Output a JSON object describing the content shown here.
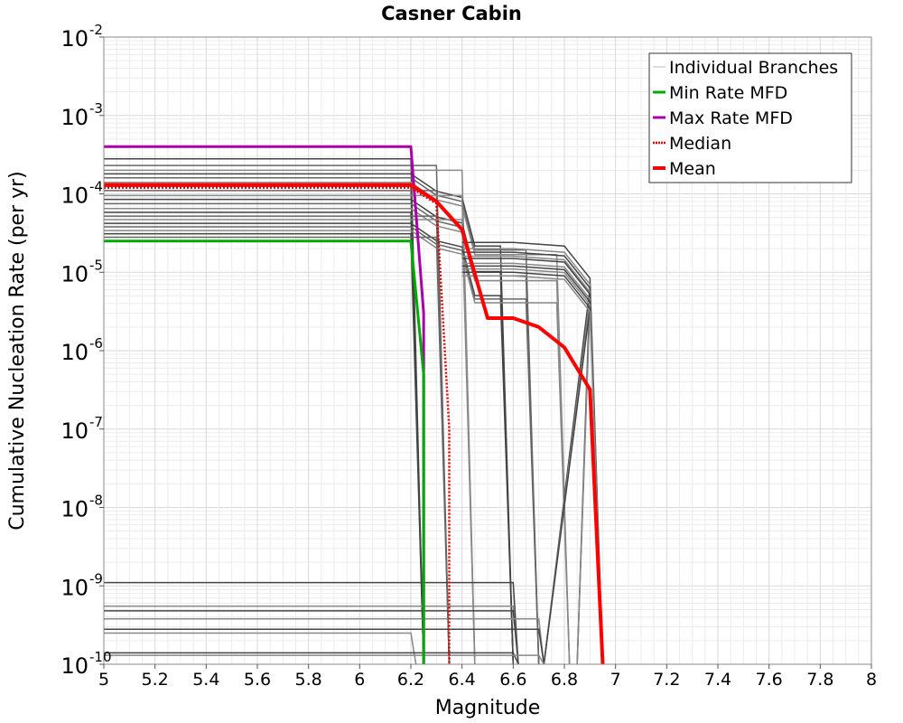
{
  "chart_data": {
    "type": "line",
    "title": "Casner Cabin",
    "xlabel": "Magnitude",
    "ylabel": "Cumulative Nucleation Rate (per yr)",
    "xlim": [
      5,
      8
    ],
    "ylim": [
      1e-10,
      0.01
    ],
    "yscale": "log",
    "grid": true,
    "legend_position": "top-right",
    "x_ticks": [
      5,
      5.2,
      5.4,
      5.6,
      5.8,
      6,
      6.2,
      6.4,
      6.6,
      6.8,
      7,
      7.2,
      7.4,
      7.6,
      7.8,
      8
    ],
    "x_tick_labels": [
      "5",
      "5.2",
      "5.4",
      "5.6",
      "5.8",
      "6",
      "6.2",
      "6.4",
      "6.6",
      "6.8",
      "7",
      "7.2",
      "7.4",
      "7.6",
      "7.8",
      "8"
    ],
    "y_ticks": [
      {
        "value": 0.01,
        "base": "10",
        "exp": "-2"
      },
      {
        "value": 0.001,
        "base": "10",
        "exp": "-3"
      },
      {
        "value": 0.0001,
        "base": "10",
        "exp": "-4"
      },
      {
        "value": 1e-05,
        "base": "10",
        "exp": "-5"
      },
      {
        "value": 1e-06,
        "base": "10",
        "exp": "-6"
      },
      {
        "value": 1e-07,
        "base": "10",
        "exp": "-7"
      },
      {
        "value": 1e-08,
        "base": "10",
        "exp": "-8"
      },
      {
        "value": 1e-09,
        "base": "10",
        "exp": "-9"
      },
      {
        "value": 1e-10,
        "base": "10",
        "exp": "-10"
      }
    ],
    "legend": [
      {
        "label": "Individual Branches",
        "color": "#bbbbbb",
        "style": "thin"
      },
      {
        "label": "Min Rate MFD",
        "color": "#00aa00",
        "style": "solid"
      },
      {
        "label": "Max Rate MFD",
        "color": "#aa00aa",
        "style": "solid"
      },
      {
        "label": "Median",
        "color": "#dd0000",
        "style": "dotted"
      },
      {
        "label": "Mean",
        "color": "#ff0000",
        "style": "thick"
      }
    ],
    "series": [
      {
        "name": "Max Rate MFD",
        "color": "#aa00aa",
        "width": 3,
        "dash": "",
        "x": [
          5,
          6.2,
          6.25,
          6.25
        ],
        "y": [
          0.0004,
          0.0004,
          3e-06,
          1e-10
        ]
      },
      {
        "name": "Min Rate MFD",
        "color": "#00aa00",
        "width": 3,
        "dash": "",
        "x": [
          5,
          6.2,
          6.25,
          6.25
        ],
        "y": [
          2.5e-05,
          2.5e-05,
          5e-07,
          1e-10
        ]
      },
      {
        "name": "Median",
        "color": "#dd0000",
        "width": 2.5,
        "dash": "2,2",
        "x": [
          5,
          6.2,
          6.3,
          6.35,
          6.35
        ],
        "y": [
          0.00012,
          0.00012,
          7.5e-05,
          1e-07,
          1e-10
        ]
      },
      {
        "name": "Mean",
        "color": "#ff0000",
        "width": 4,
        "dash": "",
        "x": [
          5,
          6.2,
          6.3,
          6.4,
          6.5,
          6.6,
          6.7,
          6.8,
          6.9,
          6.95
        ],
        "y": [
          0.00013,
          0.00013,
          8e-05,
          3.5e-05,
          2.6e-06,
          2.6e-06,
          2e-06,
          1.1e-06,
          3.2e-07,
          1e-10
        ]
      }
    ],
    "branch_groups": {
      "color_dark": "#444444",
      "color_light": "#888888",
      "group_a_y": [
        0.00028,
        0.00023,
        0.0002,
        0.00018,
        0.00016,
        0.00014,
        0.000125,
        0.00011,
        9.5e-05,
        8.5e-05,
        7.5e-05,
        6.5e-05,
        5.8e-05,
        5.2e-05,
        4.7e-05,
        4.2e-05,
        3.8e-05,
        3.4e-05,
        3.1e-05,
        2.8e-05
      ],
      "group_b_y": [
        2.4e-05,
        2e-05,
        1.8e-05,
        1.6e-05,
        1.5e-05,
        1.3e-05,
        1.2e-05,
        1.1e-05,
        1e-05,
        9e-06
      ],
      "group_c_y": [
        1.1e-09,
        5.5e-10,
        4.8e-10,
        3.8e-10,
        2.8e-10,
        2.5e-10,
        1.4e-10,
        1.3e-10
      ]
    }
  }
}
